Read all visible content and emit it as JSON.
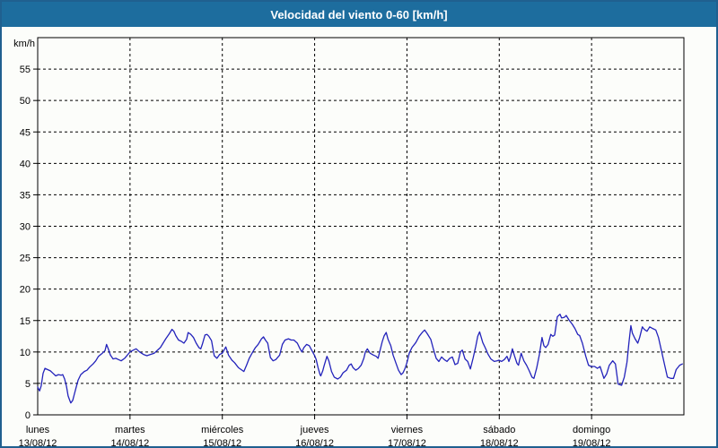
{
  "window": {
    "title": "Velocidad del viento 0-60 [km/h]"
  },
  "colors": {
    "titlebar_bg": "#1d6d9e",
    "titlebar_text": "#ffffff",
    "frame_border": "#20608f",
    "background": "#fcfdfa",
    "grid": "#000000",
    "axis": "#000000",
    "line": "#2323bb"
  },
  "chart_data": {
    "type": "line",
    "title": "Velocidad del viento 0-60 [km/h]",
    "unit_label": "km/h",
    "ylim": [
      0,
      60
    ],
    "ytick_step": 5,
    "ytick_labels": [
      0,
      5,
      10,
      15,
      20,
      25,
      30,
      35,
      40,
      45,
      50,
      55
    ],
    "xlim_hours": [
      0,
      168
    ],
    "grid": "dashed",
    "legend": "none",
    "x_days": [
      {
        "name": "lunes",
        "date": "13/08/12"
      },
      {
        "name": "martes",
        "date": "14/08/12"
      },
      {
        "name": "miércoles",
        "date": "15/08/12"
      },
      {
        "name": "jueves",
        "date": "16/08/12"
      },
      {
        "name": "viernes",
        "date": "17/08/12"
      },
      {
        "name": "sábado",
        "date": "18/08/12"
      },
      {
        "name": "domingo",
        "date": "19/08/12"
      }
    ],
    "series": [
      {
        "name": "Velocidad del viento",
        "units": "km/h",
        "points": [
          [
            0,
            4.4
          ],
          [
            0.5,
            3.8
          ],
          [
            0.9,
            4.6
          ],
          [
            1.4,
            6.6
          ],
          [
            1.9,
            7.4
          ],
          [
            2.6,
            7.2
          ],
          [
            3.3,
            7
          ],
          [
            4,
            6.6
          ],
          [
            4.7,
            6.2
          ],
          [
            5.4,
            6.4
          ],
          [
            6.1,
            6.3
          ],
          [
            6.5,
            6.4
          ],
          [
            7,
            5.7
          ],
          [
            7.5,
            4.5
          ],
          [
            7.9,
            3
          ],
          [
            8.4,
            2.2
          ],
          [
            8.6,
            1.9
          ],
          [
            9.1,
            2.3
          ],
          [
            9.5,
            3.2
          ],
          [
            10,
            4.4
          ],
          [
            10.5,
            5.5
          ],
          [
            11.2,
            6.4
          ],
          [
            12.1,
            6.9
          ],
          [
            12.8,
            7.1
          ],
          [
            13.5,
            7.6
          ],
          [
            14.4,
            8.1
          ],
          [
            15.1,
            8.6
          ],
          [
            15.8,
            9.3
          ],
          [
            16.8,
            9.8
          ],
          [
            17.5,
            10.2
          ],
          [
            17.9,
            11.2
          ],
          [
            18.4,
            10.4
          ],
          [
            18.9,
            9.5
          ],
          [
            19.6,
            8.9
          ],
          [
            20.3,
            9
          ],
          [
            21,
            8.8
          ],
          [
            21.7,
            8.6
          ],
          [
            22.6,
            9
          ],
          [
            23.3,
            9.5
          ],
          [
            24,
            10
          ],
          [
            24.9,
            10.3
          ],
          [
            25.6,
            10.5
          ],
          [
            26.5,
            10
          ],
          [
            27.5,
            9.6
          ],
          [
            28.4,
            9.4
          ],
          [
            29.3,
            9.6
          ],
          [
            30.3,
            9.8
          ],
          [
            31,
            10.2
          ],
          [
            31.9,
            10.7
          ],
          [
            32.6,
            11.4
          ],
          [
            33.3,
            12.1
          ],
          [
            34.2,
            12.9
          ],
          [
            34.9,
            13.6
          ],
          [
            35.4,
            13.3
          ],
          [
            35.9,
            12.6
          ],
          [
            36.6,
            11.9
          ],
          [
            37.3,
            11.7
          ],
          [
            38,
            11.4
          ],
          [
            38.7,
            12
          ],
          [
            39.1,
            13.1
          ],
          [
            39.8,
            12.8
          ],
          [
            40.5,
            12.3
          ],
          [
            41.2,
            11.4
          ],
          [
            41.9,
            10.7
          ],
          [
            42.4,
            10.5
          ],
          [
            42.8,
            11.2
          ],
          [
            43.5,
            12.7
          ],
          [
            44,
            12.8
          ],
          [
            44.5,
            12.5
          ],
          [
            45.2,
            11.8
          ],
          [
            45.9,
            9.4
          ],
          [
            46.6,
            9
          ],
          [
            47.3,
            9.6
          ],
          [
            48,
            9.8
          ],
          [
            48.9,
            10.8
          ],
          [
            49.6,
            9.5
          ],
          [
            50.5,
            8.7
          ],
          [
            51.2,
            8.3
          ],
          [
            52.2,
            7.5
          ],
          [
            52.9,
            7.2
          ],
          [
            53.6,
            6.9
          ],
          [
            54.3,
            7.9
          ],
          [
            55,
            9
          ],
          [
            55.9,
            10
          ],
          [
            56.6,
            10.7
          ],
          [
            57.3,
            11.2
          ],
          [
            58.2,
            12.1
          ],
          [
            58.7,
            12.4
          ],
          [
            59.2,
            11.9
          ],
          [
            59.8,
            11.4
          ],
          [
            60.5,
            9.1
          ],
          [
            61.2,
            8.6
          ],
          [
            61.9,
            8.8
          ],
          [
            62.9,
            9.5
          ],
          [
            63.6,
            11.2
          ],
          [
            64.3,
            11.9
          ],
          [
            65.2,
            12.1
          ],
          [
            65.9,
            11.9
          ],
          [
            66.6,
            11.9
          ],
          [
            67.5,
            11.4
          ],
          [
            68.2,
            10.5
          ],
          [
            68.7,
            10
          ],
          [
            69.2,
            10.7
          ],
          [
            69.9,
            11.2
          ],
          [
            70.6,
            11
          ],
          [
            71.3,
            10.2
          ],
          [
            72,
            9.4
          ],
          [
            72.4,
            8.8
          ],
          [
            72.9,
            7.5
          ],
          [
            73.4,
            6.4
          ],
          [
            73.6,
            6.2
          ],
          [
            74.1,
            7
          ],
          [
            74.5,
            7.9
          ],
          [
            75.2,
            9.3
          ],
          [
            75.7,
            8.6
          ],
          [
            76.4,
            6.9
          ],
          [
            77.1,
            6
          ],
          [
            78,
            5.7
          ],
          [
            78.7,
            6
          ],
          [
            79.4,
            6.7
          ],
          [
            80.3,
            7.1
          ],
          [
            81,
            7.9
          ],
          [
            81.5,
            8.1
          ],
          [
            82,
            7.5
          ],
          [
            82.7,
            7.1
          ],
          [
            83.4,
            7.4
          ],
          [
            84.1,
            7.9
          ],
          [
            84.8,
            9
          ],
          [
            85.2,
            10
          ],
          [
            85.7,
            10.5
          ],
          [
            86.4,
            9.8
          ],
          [
            87.3,
            9.5
          ],
          [
            88,
            9.3
          ],
          [
            88.5,
            9
          ],
          [
            88.9,
            10
          ],
          [
            89.6,
            11.7
          ],
          [
            90.1,
            12.6
          ],
          [
            90.6,
            13.1
          ],
          [
            91.1,
            12
          ],
          [
            91.8,
            11
          ],
          [
            92.4,
            9.5
          ],
          [
            93.1,
            8.3
          ],
          [
            93.8,
            7.1
          ],
          [
            94.5,
            6.4
          ],
          [
            95,
            6.7
          ],
          [
            95.5,
            7.4
          ],
          [
            96,
            8.3
          ],
          [
            96.6,
            9.8
          ],
          [
            97.3,
            10.7
          ],
          [
            98.3,
            11.5
          ],
          [
            99.2,
            12.5
          ],
          [
            100.1,
            13.2
          ],
          [
            100.6,
            13.5
          ],
          [
            101.3,
            12.9
          ],
          [
            102.2,
            12
          ],
          [
            102.9,
            10.4
          ],
          [
            103.6,
            9
          ],
          [
            104.3,
            8.5
          ],
          [
            105,
            9.2
          ],
          [
            105.7,
            8.8
          ],
          [
            106.4,
            8.5
          ],
          [
            107.1,
            9
          ],
          [
            107.8,
            9.2
          ],
          [
            108.5,
            8
          ],
          [
            109.2,
            8.2
          ],
          [
            109.9,
            10
          ],
          [
            110.4,
            10.3
          ],
          [
            111.1,
            8.9
          ],
          [
            111.8,
            8.5
          ],
          [
            112.5,
            7.3
          ],
          [
            113.2,
            9
          ],
          [
            113.9,
            10.9
          ],
          [
            114.4,
            12.5
          ],
          [
            114.9,
            13.2
          ],
          [
            115.7,
            11.5
          ],
          [
            116.4,
            10.6
          ],
          [
            117.1,
            9.6
          ],
          [
            117.8,
            8.9
          ],
          [
            118.7,
            8.5
          ],
          [
            119.4,
            8.6
          ],
          [
            119.9,
            8.7
          ],
          [
            120.6,
            8.5
          ],
          [
            121.3,
            8.8
          ],
          [
            122,
            9.3
          ],
          [
            122.5,
            8.5
          ],
          [
            122.9,
            9.2
          ],
          [
            123.4,
            10.5
          ],
          [
            123.9,
            9.5
          ],
          [
            124.6,
            8.2
          ],
          [
            125,
            7.9
          ],
          [
            125.7,
            9.8
          ],
          [
            126.4,
            8.6
          ],
          [
            127.1,
            7.9
          ],
          [
            127.8,
            7
          ],
          [
            128.5,
            6
          ],
          [
            129,
            5.8
          ],
          [
            129.7,
            7.4
          ],
          [
            130.4,
            9.5
          ],
          [
            131.1,
            12.3
          ],
          [
            131.6,
            11
          ],
          [
            132.1,
            10.7
          ],
          [
            132.7,
            11.2
          ],
          [
            133.4,
            12.8
          ],
          [
            133.9,
            12.5
          ],
          [
            134.4,
            12.7
          ],
          [
            135.1,
            15.6
          ],
          [
            135.8,
            16
          ],
          [
            136.2,
            15.4
          ],
          [
            136.9,
            15.5
          ],
          [
            137.4,
            15.8
          ],
          [
            138.1,
            15.1
          ],
          [
            139,
            14.4
          ],
          [
            139.7,
            13.7
          ],
          [
            140.4,
            12.8
          ],
          [
            140.9,
            12.6
          ],
          [
            141.6,
            11.4
          ],
          [
            142.5,
            9.3
          ],
          [
            143.2,
            7.9
          ],
          [
            143.9,
            7.7
          ],
          [
            144.8,
            7.7
          ],
          [
            145.5,
            7.4
          ],
          [
            146.2,
            7.7
          ],
          [
            147.2,
            5.8
          ],
          [
            147.9,
            6.5
          ],
          [
            148.6,
            7.9
          ],
          [
            149.5,
            8.6
          ],
          [
            150.2,
            8.1
          ],
          [
            150.9,
            4.9
          ],
          [
            151.8,
            4.7
          ],
          [
            152.5,
            6
          ],
          [
            153.2,
            8.4
          ],
          [
            153.7,
            11.4
          ],
          [
            154.2,
            14.2
          ],
          [
            154.6,
            13
          ],
          [
            155.3,
            12.1
          ],
          [
            156,
            11.4
          ],
          [
            156.5,
            12.3
          ],
          [
            157.2,
            14
          ],
          [
            157.7,
            13.6
          ],
          [
            158.4,
            13.3
          ],
          [
            159.1,
            14
          ],
          [
            160,
            13.7
          ],
          [
            160.7,
            13.5
          ],
          [
            161.4,
            12.3
          ],
          [
            162.3,
            9.8
          ],
          [
            163,
            7.9
          ],
          [
            163.7,
            6
          ],
          [
            164.6,
            5.8
          ],
          [
            165.3,
            5.8
          ],
          [
            166,
            7.2
          ],
          [
            166.9,
            7.9
          ],
          [
            167.6,
            8.1
          ]
        ]
      }
    ]
  }
}
